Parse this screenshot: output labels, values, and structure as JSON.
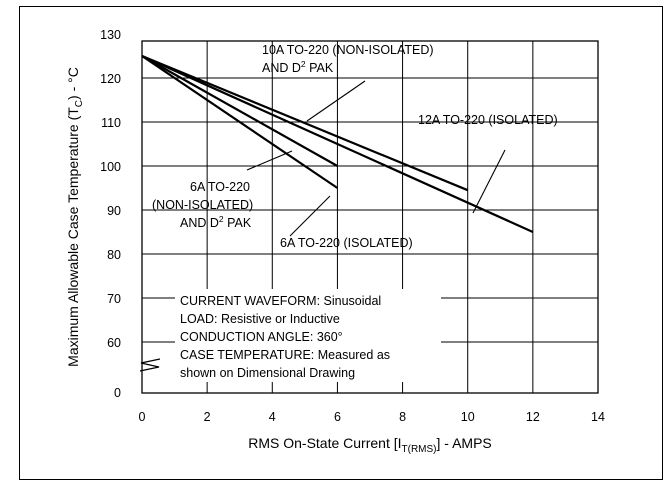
{
  "chart_data": {
    "type": "line",
    "xlabel_main": "RMS On-State Current [I",
    "xlabel_sub": "T(RMS)",
    "xlabel_tail": "] - AMPS",
    "ylabel_main": "Maximum Allowable Case Temperature (T",
    "ylabel_sub": "C",
    "ylabel_tail": ") - °C",
    "xlim": [
      0,
      14
    ],
    "x_ticks": [
      0,
      2,
      4,
      6,
      8,
      10,
      12,
      14
    ],
    "y_ticks": [
      0,
      60,
      70,
      80,
      90,
      100,
      110,
      120,
      130
    ],
    "y_axis_break": "between 0 and 60",
    "grid": true,
    "series": [
      {
        "x": [
          0,
          6
        ],
        "y": [
          125,
          95
        ]
      },
      {
        "x": [
          0,
          6
        ],
        "y": [
          125,
          100
        ]
      },
      {
        "x": [
          0,
          10
        ],
        "y": [
          125,
          94.5
        ]
      },
      {
        "x": [
          0,
          12
        ],
        "y": [
          125,
          85
        ]
      }
    ],
    "annotations": {
      "a10": [
        "10A TO-220 (NON-ISOLATED)",
        "AND D",
        "2",
        " PAK"
      ],
      "a12": "12A TO-220 (ISOLATED)",
      "a6n": [
        "6A TO-220",
        "(NON-ISOLATED)",
        "AND D",
        "2",
        " PAK"
      ],
      "a6i": "6A TO-220 (ISOLATED)"
    },
    "notes": [
      "CURRENT WAVEFORM: Sinusoidal",
      "LOAD: Resistive or Inductive",
      "CONDUCTION ANGLE: 360°",
      "CASE TEMPERATURE: Measured as",
      "shown on Dimensional Drawing"
    ]
  }
}
